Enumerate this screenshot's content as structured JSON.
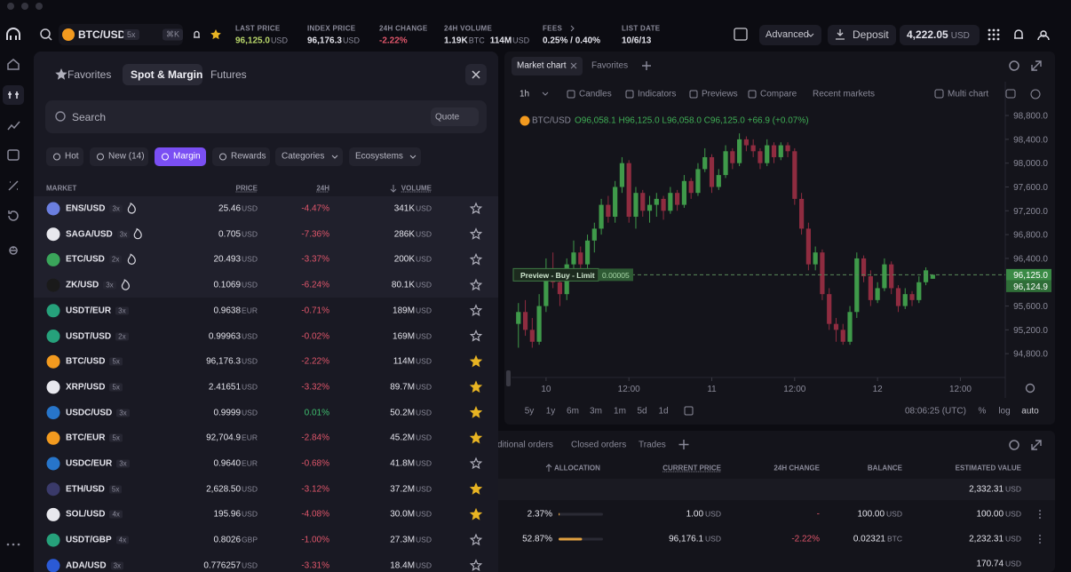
{
  "header": {
    "pair": "BTC/USD",
    "leverage": "5x",
    "shortcut": "⌘K",
    "stats": [
      {
        "label": "LAST PRICE",
        "value": "96,125.0",
        "unit": "USD"
      },
      {
        "label": "INDEX PRICE",
        "value": "96,176.3",
        "unit": "USD"
      },
      {
        "label": "24H CHANGE",
        "value": "-2.22%"
      },
      {
        "label": "24H VOLUME",
        "value": "1.19K",
        "unit": "BTC",
        "value2": "114M",
        "unit2": "USD"
      },
      {
        "label": "FEES",
        "value": "0.25% / 0.40%"
      },
      {
        "label": "LIST DATE",
        "value": "10/6/13"
      }
    ],
    "mode": "Advanced",
    "deposit": "Deposit",
    "balance": "4,222.05",
    "balance_unit": "USD"
  },
  "market_panel": {
    "tabs": [
      "Favorites",
      "Spot & Margin",
      "Futures"
    ],
    "active_tab": 1,
    "search_placeholder": "Search",
    "quote": "Quote",
    "filters": [
      "Hot",
      "New (14)",
      "Margin",
      "Rewards",
      "Categories",
      "Ecosystems"
    ],
    "active_filter": 2,
    "columns": [
      "MARKET",
      "PRICE",
      "24H",
      "VOLUME"
    ],
    "rows": [
      {
        "market": "ENS/USD",
        "leverage": "3x",
        "hot": true,
        "price": "25.46",
        "price_unit": "USD",
        "change": "-4.47%",
        "volume": "341K",
        "volume_unit": "USD",
        "favorite": false
      },
      {
        "market": "SAGA/USD",
        "leverage": "3x",
        "hot": true,
        "price": "0.705",
        "price_unit": "USD",
        "change": "-7.36%",
        "volume": "286K",
        "volume_unit": "USD",
        "favorite": false
      },
      {
        "market": "ETC/USD",
        "leverage": "2x",
        "hot": true,
        "price": "20.493",
        "price_unit": "USD",
        "change": "-3.37%",
        "volume": "200K",
        "volume_unit": "USD",
        "favorite": false
      },
      {
        "market": "ZK/USD",
        "leverage": "3x",
        "hot": true,
        "price": "0.1069",
        "price_unit": "USD",
        "change": "-6.24%",
        "volume": "80.1K",
        "volume_unit": "USD",
        "favorite": false
      },
      {
        "market": "USDT/EUR",
        "leverage": "3x",
        "hot": false,
        "price": "0.9638",
        "price_unit": "EUR",
        "change": "-0.71%",
        "volume": "189M",
        "volume_unit": "USD",
        "favorite": false
      },
      {
        "market": "USDT/USD",
        "leverage": "2x",
        "hot": false,
        "price": "0.99963",
        "price_unit": "USD",
        "change": "-0.02%",
        "volume": "169M",
        "volume_unit": "USD",
        "favorite": false
      },
      {
        "market": "BTC/USD",
        "leverage": "5x",
        "hot": false,
        "price": "96,176.3",
        "price_unit": "USD",
        "change": "-2.22%",
        "volume": "114M",
        "volume_unit": "USD",
        "favorite": true
      },
      {
        "market": "XRP/USD",
        "leverage": "5x",
        "hot": false,
        "price": "2.41651",
        "price_unit": "USD",
        "change": "-3.32%",
        "volume": "89.7M",
        "volume_unit": "USD",
        "favorite": true
      },
      {
        "market": "USDC/USD",
        "leverage": "3x",
        "hot": false,
        "price": "0.9999",
        "price_unit": "USD",
        "change": "0.01%",
        "volume": "50.2M",
        "volume_unit": "USD",
        "favorite": true
      },
      {
        "market": "BTC/EUR",
        "leverage": "5x",
        "hot": false,
        "price": "92,704.9",
        "price_unit": "EUR",
        "change": "-2.84%",
        "volume": "45.2M",
        "volume_unit": "USD",
        "favorite": true
      },
      {
        "market": "USDC/EUR",
        "leverage": "3x",
        "hot": false,
        "price": "0.9640",
        "price_unit": "EUR",
        "change": "-0.68%",
        "volume": "41.8M",
        "volume_unit": "USD",
        "favorite": false
      },
      {
        "market": "ETH/USD",
        "leverage": "5x",
        "hot": false,
        "price": "2,628.50",
        "price_unit": "USD",
        "change": "-3.12%",
        "volume": "37.2M",
        "volume_unit": "USD",
        "favorite": true
      },
      {
        "market": "SOL/USD",
        "leverage": "4x",
        "hot": false,
        "price": "195.96",
        "price_unit": "USD",
        "change": "-4.08%",
        "volume": "30.0M",
        "volume_unit": "USD",
        "favorite": true
      },
      {
        "market": "USDT/GBP",
        "leverage": "4x",
        "hot": false,
        "price": "0.8026",
        "price_unit": "GBP",
        "change": "-1.00%",
        "volume": "27.3M",
        "volume_unit": "USD",
        "favorite": false
      },
      {
        "market": "ADA/USD",
        "leverage": "3x",
        "hot": false,
        "price": "0.776257",
        "price_unit": "USD",
        "change": "-3.31%",
        "volume": "18.4M",
        "volume_unit": "USD",
        "favorite": false
      }
    ]
  },
  "chart": {
    "type": "candlestick",
    "tabs": [
      "Market chart",
      "Favorites"
    ],
    "interval": "1h",
    "tools": [
      "Candles",
      "Indicators",
      "Previews",
      "Compare",
      "Recent markets"
    ],
    "multi_chart": "Multi chart",
    "symbol": "BTC/USD",
    "ohlc": "O96,058.1 H96,125.0 L96,058.0 C96,125.0 +66.9 (+0.07%)",
    "up_color": "#3f9a4a",
    "down_color": "#8f2c40",
    "ylim": [
      94400,
      98950
    ],
    "yticks": [
      {
        "value": 98800,
        "label": "98,800.0"
      },
      {
        "value": 98400,
        "label": "98,400.0"
      },
      {
        "value": 98000,
        "label": "98,000.0"
      },
      {
        "value": 97600,
        "label": "97,600.0"
      },
      {
        "value": 97200,
        "label": "97,200.0"
      },
      {
        "value": 96800,
        "label": "96,800.0"
      },
      {
        "value": 96400,
        "label": "96,400.0"
      },
      {
        "value": 95600,
        "label": "95,600.0"
      },
      {
        "value": 95200,
        "label": "95,200.0"
      },
      {
        "value": 94800,
        "label": "94,800.0"
      }
    ],
    "xlim": [
      -1,
      70.5
    ],
    "xticks": [
      {
        "value": 4,
        "label": "10"
      },
      {
        "value": 16,
        "label": "12:00"
      },
      {
        "value": 28,
        "label": "11"
      },
      {
        "value": 40,
        "label": "12:00"
      },
      {
        "value": 52,
        "label": "12"
      },
      {
        "value": 64,
        "label": "12:00"
      }
    ],
    "candles": [
      [
        95300,
        95650,
        94900,
        95500
      ],
      [
        95500,
        95700,
        95100,
        95200
      ],
      [
        95200,
        95400,
        94900,
        95000
      ],
      [
        95000,
        95800,
        94950,
        95600
      ],
      [
        95600,
        96400,
        95500,
        96200
      ],
      [
        96200,
        96500,
        95900,
        96000
      ],
      [
        96000,
        96100,
        95600,
        95800
      ],
      [
        95800,
        96400,
        95700,
        96300
      ],
      [
        96300,
        96700,
        96200,
        96500
      ],
      [
        96500,
        96600,
        96100,
        96300
      ],
      [
        96300,
        96800,
        96200,
        96700
      ],
      [
        96700,
        97000,
        96500,
        96900
      ],
      [
        96900,
        97400,
        96800,
        97300
      ],
      [
        97300,
        97450,
        97000,
        97100
      ],
      [
        97100,
        97700,
        97000,
        97600
      ],
      [
        97600,
        98100,
        97500,
        98000
      ],
      [
        98000,
        98050,
        97000,
        97100
      ],
      [
        97100,
        97600,
        96900,
        97500
      ],
      [
        97500,
        97550,
        97100,
        97200
      ],
      [
        97200,
        97450,
        97000,
        97300
      ],
      [
        97300,
        97500,
        97100,
        97400
      ],
      [
        97400,
        97450,
        97050,
        97200
      ],
      [
        97200,
        97600,
        97150,
        97500
      ],
      [
        97500,
        97550,
        97200,
        97300
      ],
      [
        97300,
        97800,
        97250,
        97700
      ],
      [
        97700,
        97750,
        97400,
        97500
      ],
      [
        97500,
        98000,
        97450,
        97900
      ],
      [
        97900,
        98250,
        97850,
        98100
      ],
      [
        98100,
        98150,
        97500,
        97600
      ],
      [
        97600,
        97900,
        97550,
        97800
      ],
      [
        97800,
        98300,
        97750,
        98200
      ],
      [
        98200,
        98250,
        97900,
        98000
      ],
      [
        98000,
        98500,
        97950,
        98400
      ],
      [
        98400,
        98450,
        98200,
        98300
      ],
      [
        98300,
        98400,
        98100,
        98200
      ],
      [
        98200,
        98250,
        97900,
        98000
      ],
      [
        98000,
        98400,
        97950,
        98300
      ],
      [
        98300,
        98350,
        98000,
        98100
      ],
      [
        98100,
        98350,
        98050,
        98300
      ],
      [
        98300,
        98350,
        98100,
        98200
      ],
      [
        98200,
        98250,
        97300,
        97400
      ],
      [
        97400,
        97500,
        96800,
        96900
      ],
      [
        96900,
        97000,
        96200,
        96300
      ],
      [
        96300,
        96600,
        96200,
        96500
      ],
      [
        96500,
        96550,
        95700,
        95800
      ],
      [
        95800,
        95900,
        95200,
        95300
      ],
      [
        95300,
        95400,
        95000,
        95200
      ],
      [
        95200,
        95300,
        94950,
        95000
      ],
      [
        95000,
        95600,
        94950,
        95500
      ],
      [
        95500,
        96500,
        95400,
        96400
      ],
      [
        96400,
        96450,
        96000,
        96100
      ],
      [
        96100,
        96200,
        95600,
        95700
      ],
      [
        95700,
        96000,
        95650,
        95900
      ],
      [
        95900,
        96400,
        95850,
        96300
      ],
      [
        96300,
        96350,
        95800,
        95900
      ],
      [
        95900,
        95950,
        95500,
        95600
      ],
      [
        95600,
        95900,
        95550,
        95800
      ],
      [
        95800,
        95850,
        95600,
        95700
      ],
      [
        95700,
        96100,
        95650,
        96000
      ],
      [
        96000,
        96250,
        95950,
        96200
      ],
      [
        96058.1,
        96125.0,
        96058.0,
        96125.0
      ]
    ],
    "price_line": {
      "value": 96125,
      "label": "96,125.0"
    },
    "price_tag2": {
      "value": 96124.9,
      "label": "96,124.9"
    },
    "order_preview": "Preview - Buy - Limit",
    "order_qty": "0.00005",
    "ranges": [
      "5y",
      "1y",
      "6m",
      "3m",
      "1m",
      "5d",
      "1d"
    ],
    "time": "08:06:25 (UTC)",
    "scale_options": [
      "%",
      "log",
      "auto"
    ]
  },
  "orders": {
    "tabs": [
      "ditional orders",
      "Closed orders",
      "Trades"
    ],
    "columns": [
      "ALLOCATION",
      "CURRENT PRICE",
      "24H CHANGE",
      "BALANCE",
      "ESTIMATED VALUE"
    ],
    "total": "2,332.31",
    "total_unit": "USD",
    "rows": [
      {
        "allocation": {
          "value": 2.37,
          "label": "2.37%"
        },
        "price": "1.00",
        "price_unit": "USD",
        "change": "-",
        "balance": "100.00",
        "balance_unit": "USD",
        "value": "100.00",
        "value_unit": "USD"
      },
      {
        "allocation": {
          "value": 52.87,
          "label": "52.87%"
        },
        "price": "96,176.1",
        "price_unit": "USD",
        "change": "-2.22%",
        "balance": "0.02321",
        "balance_unit": "BTC",
        "value": "2,232.31",
        "value_unit": "USD"
      },
      {
        "value": "170.74",
        "value_unit": "USD"
      }
    ]
  }
}
